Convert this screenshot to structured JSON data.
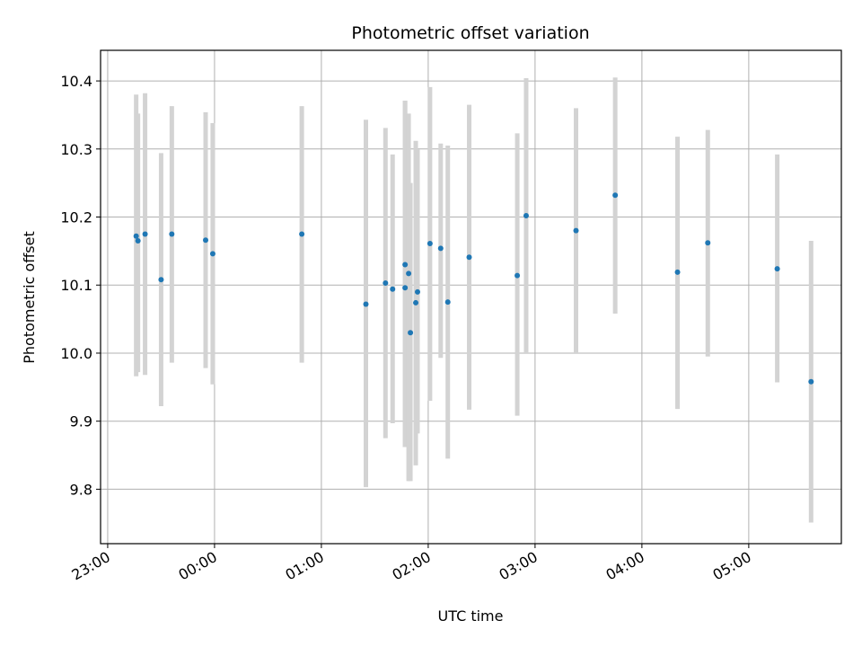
{
  "chart_data": {
    "type": "scatter",
    "title": "Photometric offset variation",
    "xlabel": "UTC time",
    "ylabel": "Photometric offset",
    "x_tick_labels": [
      "23:00",
      "00:00",
      "01:00",
      "02:00",
      "03:00",
      "04:00",
      "05:00"
    ],
    "x_tick_minutes": [
      0,
      60,
      120,
      180,
      240,
      300,
      360
    ],
    "xlim_minutes": [
      -4,
      412
    ],
    "y_ticks": [
      9.8,
      9.9,
      10.0,
      10.1,
      10.2,
      10.3,
      10.4
    ],
    "y_tick_labels": [
      "9.8",
      "9.9",
      "10.0",
      "10.1",
      "10.2",
      "10.3",
      "10.4"
    ],
    "ylim": [
      9.72,
      10.445
    ],
    "grid": true,
    "colors": {
      "point": "#1f77b4",
      "errorbar": "#d3d3d3",
      "grid": "#b0b0b0"
    },
    "points": [
      {
        "t": "23:16",
        "y": 10.172,
        "lo": 9.966,
        "hi": 10.38
      },
      {
        "t": "23:17",
        "y": 10.165,
        "lo": 9.972,
        "hi": 10.352
      },
      {
        "t": "23:21",
        "y": 10.175,
        "lo": 9.968,
        "hi": 10.382
      },
      {
        "t": "23:30",
        "y": 10.108,
        "lo": 9.922,
        "hi": 10.294
      },
      {
        "t": "23:36",
        "y": 10.175,
        "lo": 9.986,
        "hi": 10.363
      },
      {
        "t": "23:55",
        "y": 10.166,
        "lo": 9.978,
        "hi": 10.354
      },
      {
        "t": "23:59",
        "y": 10.146,
        "lo": 9.954,
        "hi": 10.338
      },
      {
        "t": "00:49",
        "y": 10.175,
        "lo": 9.986,
        "hi": 10.363
      },
      {
        "t": "01:25",
        "y": 10.072,
        "lo": 9.803,
        "hi": 10.343
      },
      {
        "t": "01:36",
        "y": 10.103,
        "lo": 9.875,
        "hi": 10.331
      },
      {
        "t": "01:40",
        "y": 10.094,
        "lo": 9.897,
        "hi": 10.292
      },
      {
        "t": "01:47",
        "y": 10.13,
        "lo": 9.862,
        "hi": 10.371
      },
      {
        "t": "01:47",
        "y": 10.096,
        "lo": 9.862,
        "hi": 10.371
      },
      {
        "t": "01:49",
        "y": 10.117,
        "lo": 9.812,
        "hi": 10.352
      },
      {
        "t": "01:50",
        "y": 10.03,
        "lo": 9.812,
        "hi": 10.25
      },
      {
        "t": "01:53",
        "y": 10.074,
        "lo": 9.835,
        "hi": 10.312
      },
      {
        "t": "01:54",
        "y": 10.09,
        "lo": 9.882,
        "hi": 10.299
      },
      {
        "t": "02:01",
        "y": 10.161,
        "lo": 9.93,
        "hi": 10.391
      },
      {
        "t": "02:07",
        "y": 10.154,
        "lo": 9.993,
        "hi": 10.308
      },
      {
        "t": "02:11",
        "y": 10.075,
        "lo": 9.845,
        "hi": 10.305
      },
      {
        "t": "02:23",
        "y": 10.141,
        "lo": 9.917,
        "hi": 10.365
      },
      {
        "t": "02:50",
        "y": 10.114,
        "lo": 9.908,
        "hi": 10.323
      },
      {
        "t": "02:55",
        "y": 10.202,
        "lo": 10.0,
        "hi": 10.404
      },
      {
        "t": "03:23",
        "y": 10.18,
        "lo": 10.0,
        "hi": 10.36
      },
      {
        "t": "03:45",
        "y": 10.232,
        "lo": 10.058,
        "hi": 10.405
      },
      {
        "t": "04:20",
        "y": 10.119,
        "lo": 9.918,
        "hi": 10.318
      },
      {
        "t": "04:37",
        "y": 10.162,
        "lo": 9.995,
        "hi": 10.328
      },
      {
        "t": "05:16",
        "y": 10.124,
        "lo": 9.957,
        "hi": 10.292
      },
      {
        "t": "05:35",
        "y": 9.958,
        "lo": 9.751,
        "hi": 10.165
      }
    ]
  }
}
